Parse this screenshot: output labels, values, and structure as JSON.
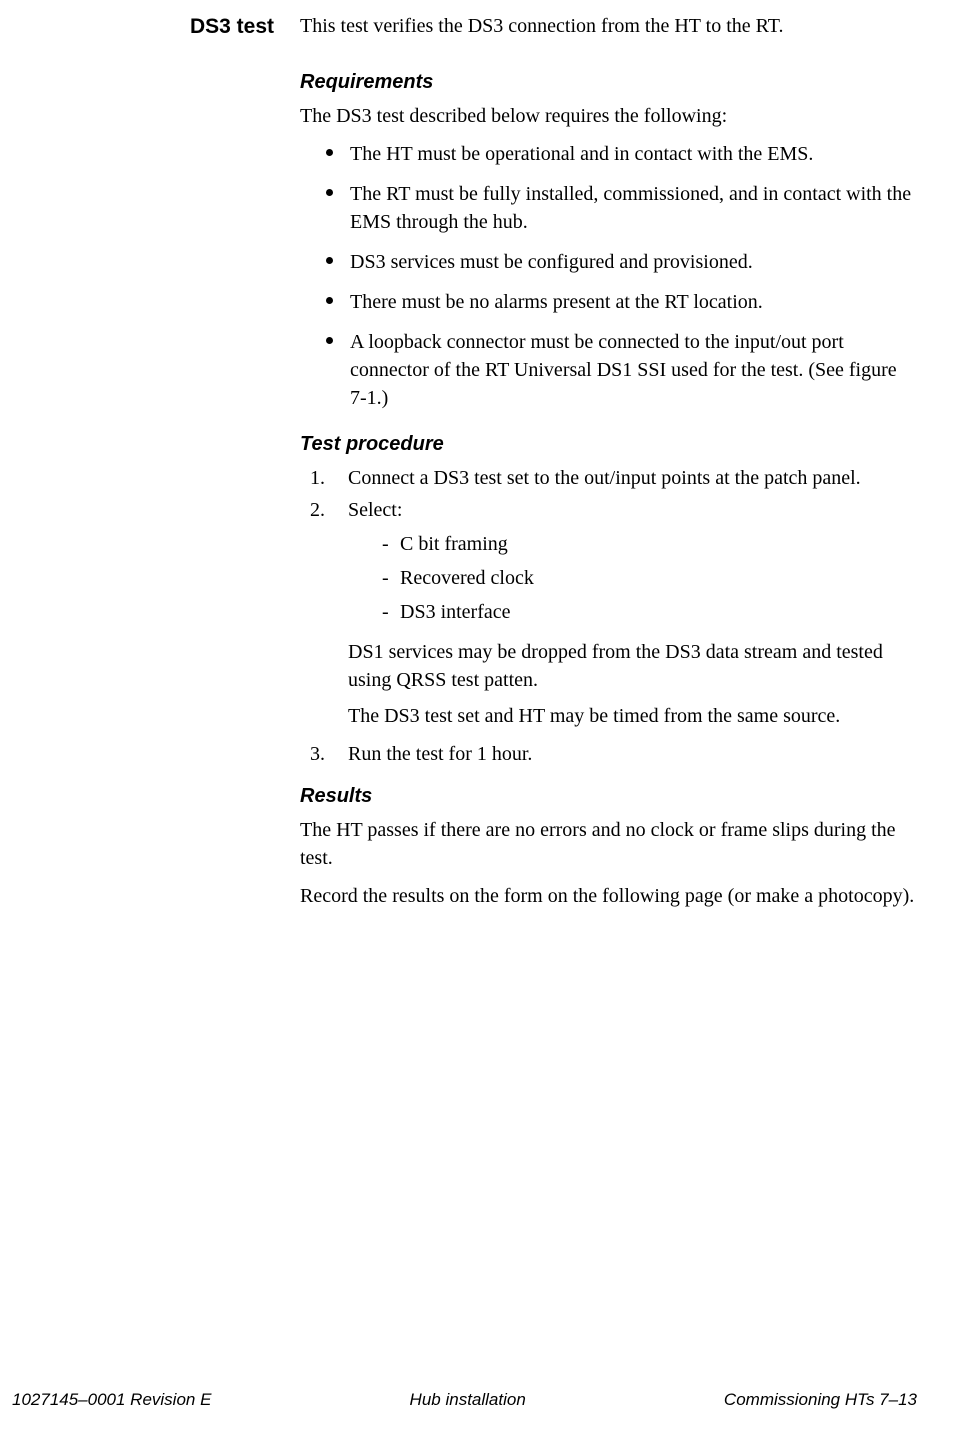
{
  "sideHeading": "DS3 test",
  "intro": "This test verifies the DS3 connection from the HT to the RT.",
  "requirements": {
    "heading": "Requirements",
    "lead": "The DS3 test described below requires the following:",
    "items": [
      "The HT must be operational and in contact with the EMS.",
      "The RT must be fully installed, commissioned, and in contact with the EMS through the hub.",
      "DS3 services must be configured and provisioned.",
      "There must be no alarms present at the RT location.",
      "A loopback connector must be connected to the input/out port connector of the RT Universal DS1 SSI used for the test. (See figure 7-1.)"
    ]
  },
  "procedure": {
    "heading": "Test procedure",
    "steps": [
      {
        "num": "1.",
        "text": "Connect a DS3 test set to the out/input points at the patch panel."
      },
      {
        "num": "2.",
        "text": "Select:",
        "sublist": [
          "C bit framing",
          "Recovered clock",
          "DS3 interface"
        ],
        "after": [
          "DS1 services may be dropped from the DS3 data stream and tested using QRSS test patten.",
          "The DS3 test set and HT may be timed from the same source."
        ]
      },
      {
        "num": "3.",
        "text": "Run the test for 1 hour."
      }
    ]
  },
  "results": {
    "heading": "Results",
    "paras": [
      "The HT passes if there are no errors and no clock or frame slips during the test.",
      "Record the results on the form on the following page (or make a photocopy)."
    ]
  },
  "footer": {
    "left": "1027145–0001  Revision E",
    "center": "Hub installation",
    "right": "Commissioning HTs   7–13"
  }
}
